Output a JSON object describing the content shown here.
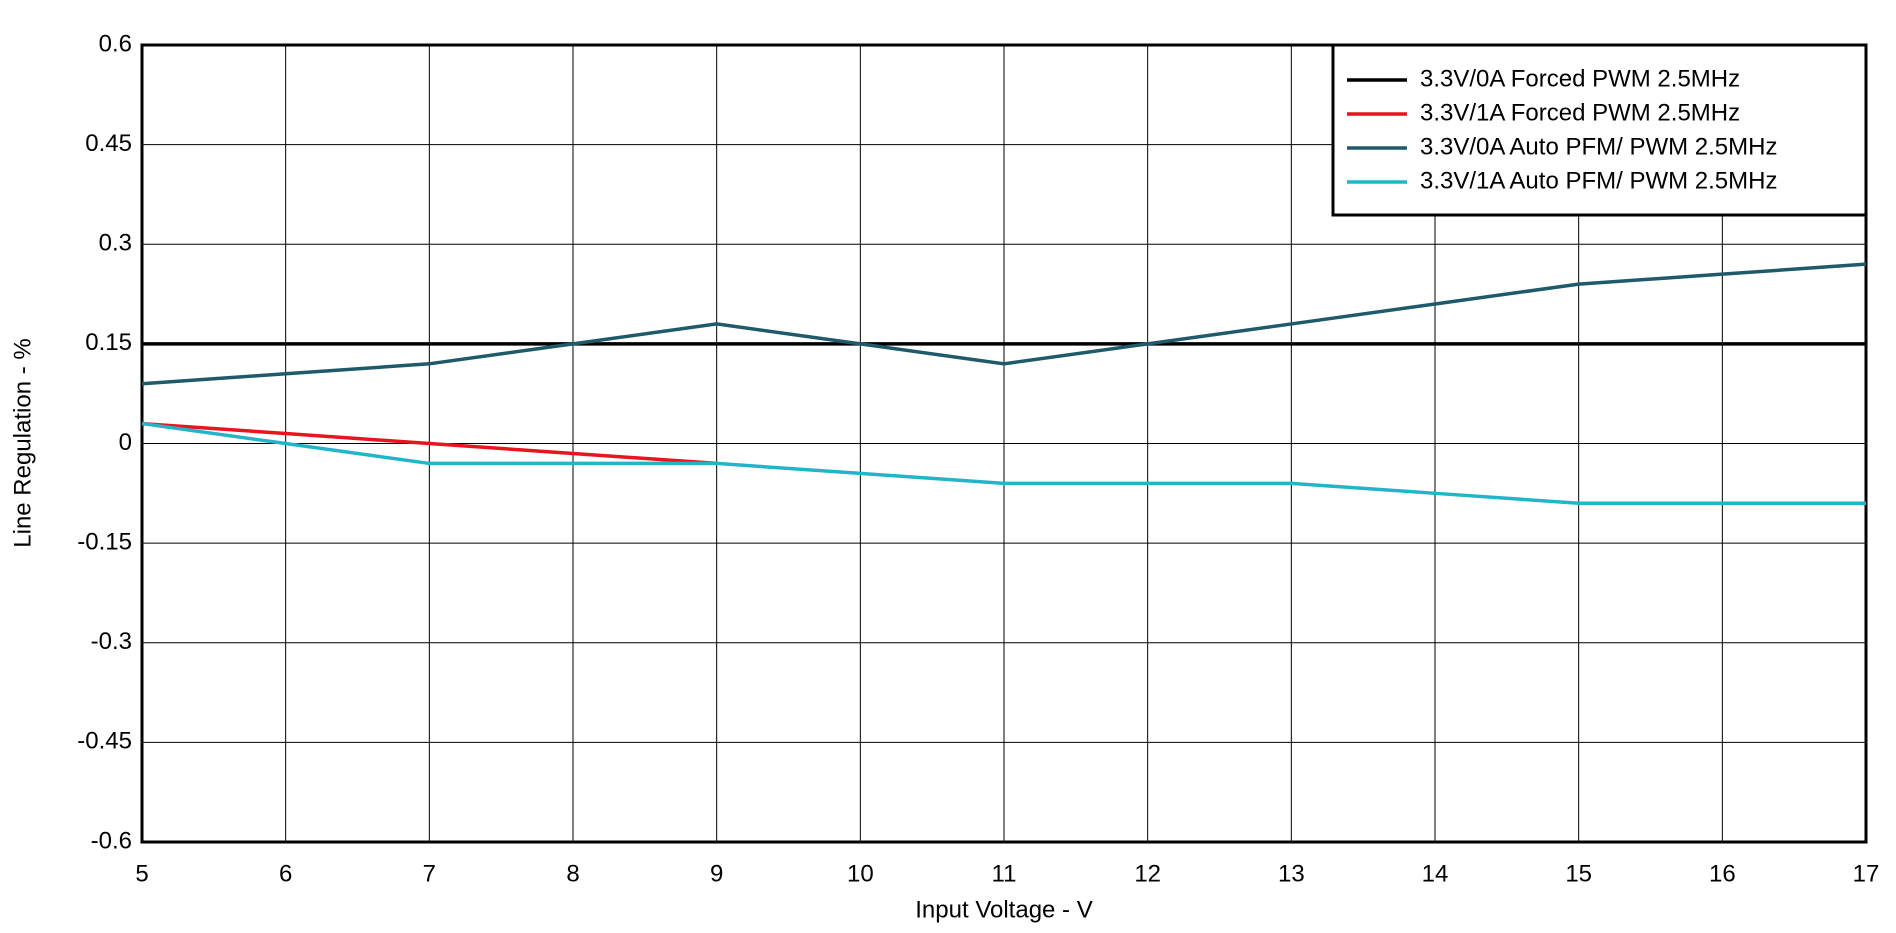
{
  "chart_data": {
    "type": "line",
    "x_label": "Input Voltage - V",
    "y_label": "Line Regulation - %",
    "x": [
      5,
      6,
      7,
      8,
      9,
      10,
      11,
      12,
      13,
      14,
      15,
      16,
      17
    ],
    "series": [
      {
        "name": "3.3V/0A Forced PWM 2.5MHz",
        "color": "#000000",
        "values": [
          0.15,
          0.15,
          0.15,
          0.15,
          0.15,
          0.15,
          0.15,
          0.15,
          0.15,
          0.15,
          0.15,
          0.15,
          0.15
        ]
      },
      {
        "name": "3.3V/1A Forced PWM 2.5MHz",
        "color": "#e8141e",
        "values": [
          0.03,
          0.015,
          0,
          -0.015,
          -0.03,
          null,
          null,
          null,
          null,
          null,
          null,
          null,
          null
        ]
      },
      {
        "name": "3.3V/0A Auto PFM/ PWM 2.5MHz",
        "color": "#1f5a6b",
        "values": [
          0.09,
          0.105,
          0.12,
          0.15,
          0.18,
          0.15,
          0.12,
          0.15,
          0.18,
          0.21,
          0.24,
          0.255,
          0.27
        ]
      },
      {
        "name": "3.3V/1A Auto PFM/ PWM 2.5MHz",
        "color": "#22b5c9",
        "values": [
          0.03,
          0,
          -0.03,
          -0.03,
          -0.03,
          -0.045,
          -0.06,
          -0.06,
          -0.06,
          -0.075,
          -0.09,
          -0.09,
          -0.09
        ]
      }
    ],
    "xlim": [
      5,
      17
    ],
    "xticks": [
      5,
      6,
      7,
      8,
      9,
      10,
      11,
      12,
      13,
      14,
      15,
      16,
      17
    ],
    "ylim": [
      -0.6,
      0.6
    ],
    "yticks": [
      0.6,
      0.45,
      0.3,
      0.15,
      0,
      -0.15,
      -0.3,
      -0.45,
      -0.6
    ],
    "grid": true,
    "legend": "upper right"
  }
}
